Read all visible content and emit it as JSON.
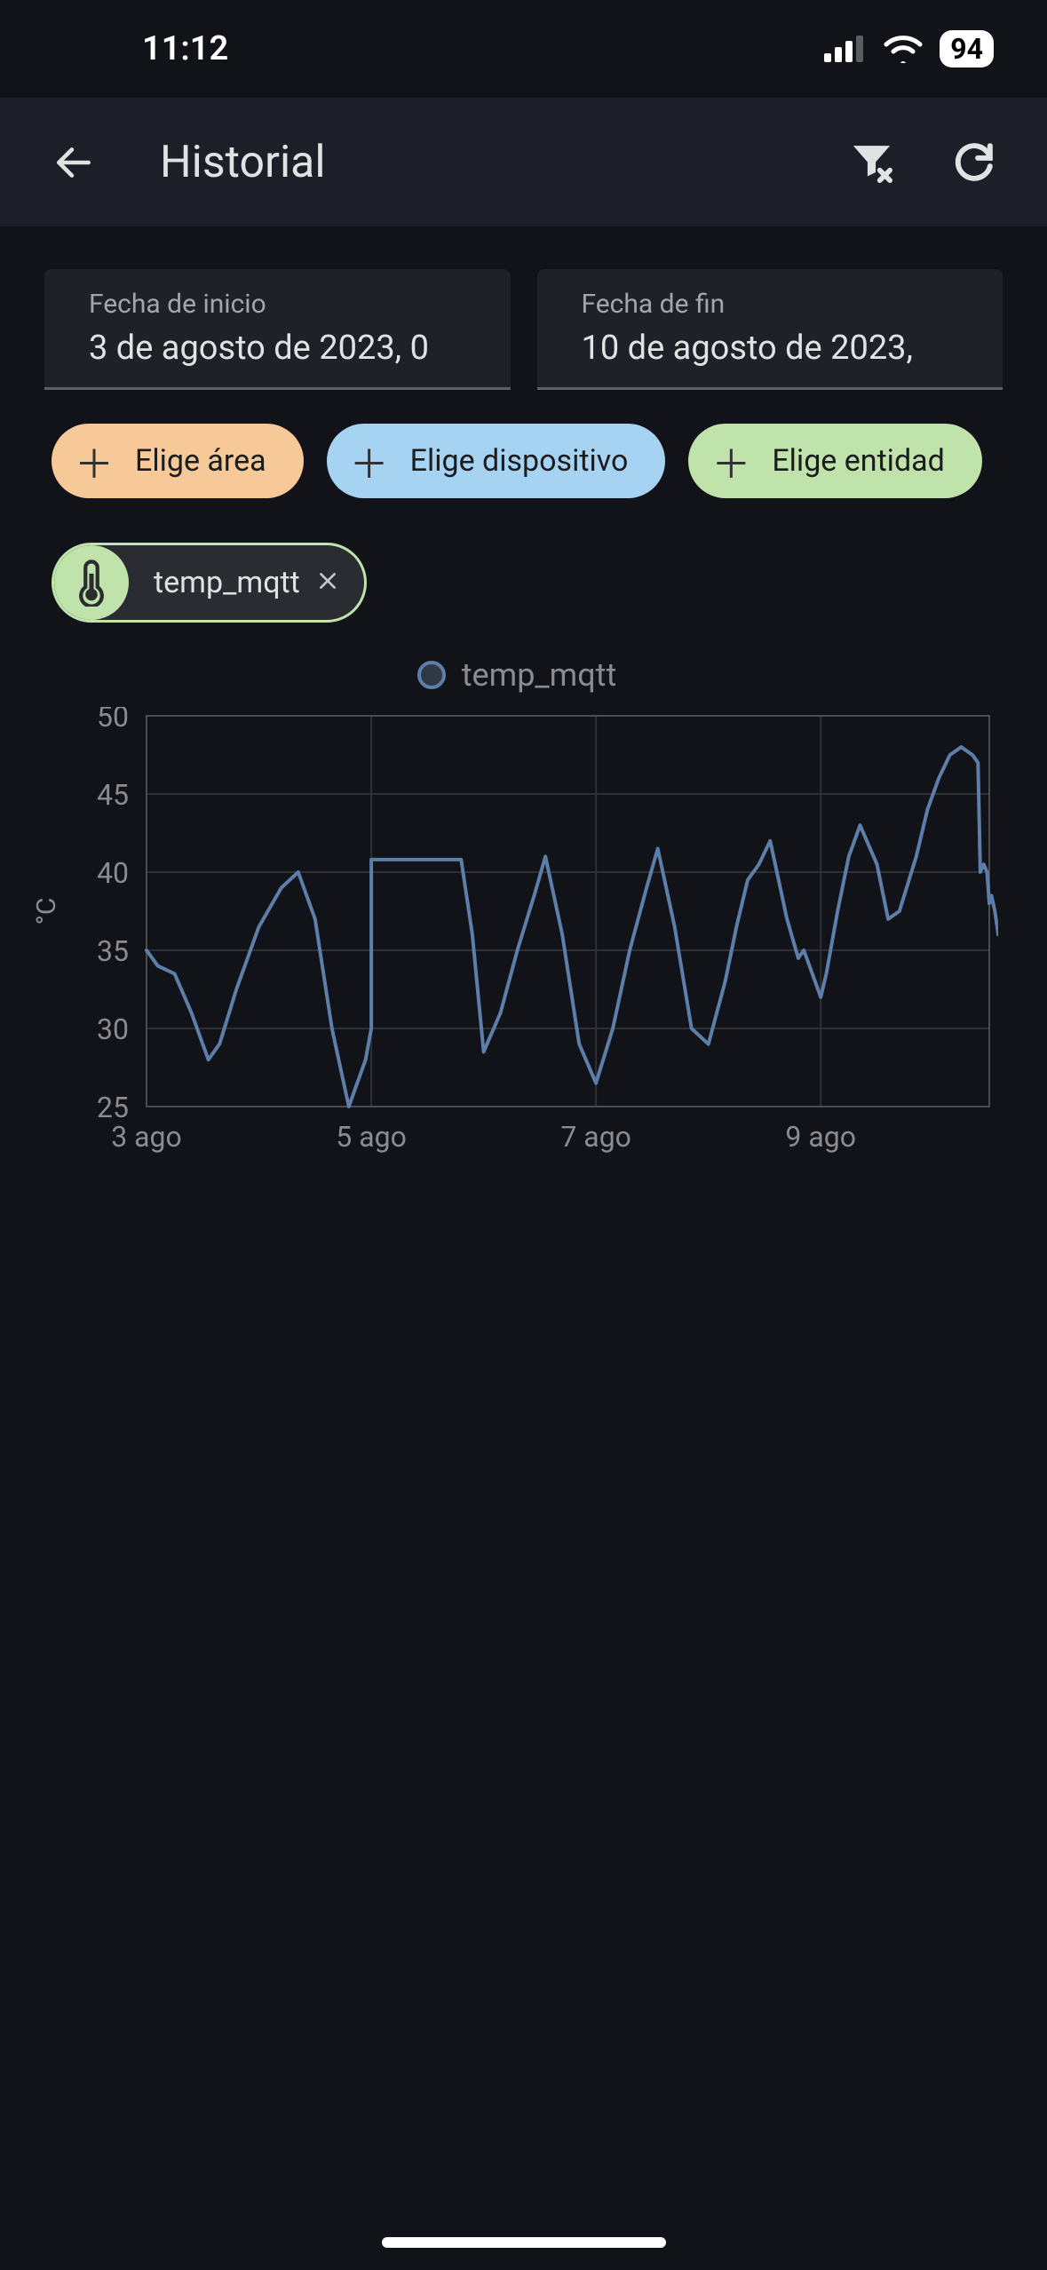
{
  "status": {
    "time": "11:12",
    "battery": "94",
    "signal_bars": 3,
    "wifi": true
  },
  "header": {
    "title": "Historial"
  },
  "date_pickers": {
    "start": {
      "label": "Fecha de inicio",
      "value": "3 de agosto de 2023, 0"
    },
    "end": {
      "label": "Fecha de fin",
      "value": "10 de agosto de 2023,"
    }
  },
  "chips": {
    "area": "Elige área",
    "device": "Elige dispositivo",
    "entity": "Elige entidad",
    "colors": {
      "area": "#f7c998",
      "device": "#a7d3f3",
      "entity": "#c0e2ab"
    }
  },
  "selected_entity": {
    "name": "temp_mqtt",
    "icon": "thermometer",
    "accent_color": "#c0e2ab"
  },
  "chart": {
    "type": "line",
    "legend_label": "temp_mqtt",
    "y_axis": {
      "unit": "°C",
      "min": 25,
      "max": 50,
      "tick_step": 5,
      "label_fontsize": 32,
      "label_color": "#8a8c92"
    },
    "x_axis": {
      "ticks": [
        "3 ago",
        "5 ago",
        "7 ago",
        "9 ago"
      ],
      "range_days": 7.5,
      "label_fontsize": 32,
      "label_color": "#8a8c92"
    },
    "plot": {
      "line_color": "#5d7ea8",
      "line_width": 4,
      "background_color": "#111318",
      "grid_color": "#2e3035",
      "border_color": "#4b4d52",
      "data": [
        [
          0.0,
          35.0
        ],
        [
          0.1,
          34.0
        ],
        [
          0.25,
          33.5
        ],
        [
          0.4,
          31.0
        ],
        [
          0.55,
          28.0
        ],
        [
          0.65,
          29.0
        ],
        [
          0.8,
          32.5
        ],
        [
          1.0,
          36.5
        ],
        [
          1.2,
          39.0
        ],
        [
          1.35,
          40.0
        ],
        [
          1.5,
          37.0
        ],
        [
          1.65,
          30.0
        ],
        [
          1.8,
          25.0
        ],
        [
          1.95,
          28.0
        ],
        [
          2.0,
          30.0
        ],
        [
          2.0,
          40.8
        ],
        [
          2.8,
          40.8
        ],
        [
          2.9,
          36.0
        ],
        [
          3.0,
          28.5
        ],
        [
          3.15,
          31.0
        ],
        [
          3.3,
          35.0
        ],
        [
          3.45,
          38.5
        ],
        [
          3.55,
          41.0
        ],
        [
          3.7,
          36.0
        ],
        [
          3.85,
          29.0
        ],
        [
          4.0,
          26.5
        ],
        [
          4.15,
          30.0
        ],
        [
          4.3,
          35.0
        ],
        [
          4.45,
          39.0
        ],
        [
          4.55,
          41.5
        ],
        [
          4.7,
          36.5
        ],
        [
          4.85,
          30.0
        ],
        [
          5.0,
          29.0
        ],
        [
          5.15,
          33.0
        ],
        [
          5.25,
          36.5
        ],
        [
          5.35,
          39.5
        ],
        [
          5.45,
          40.5
        ],
        [
          5.55,
          42.0
        ],
        [
          5.7,
          37.0
        ],
        [
          5.8,
          34.5
        ],
        [
          5.85,
          35.0
        ],
        [
          5.95,
          33.0
        ],
        [
          6.0,
          32.0
        ],
        [
          6.05,
          33.5
        ],
        [
          6.15,
          37.5
        ],
        [
          6.25,
          41.0
        ],
        [
          6.35,
          43.0
        ],
        [
          6.5,
          40.5
        ],
        [
          6.6,
          37.0
        ],
        [
          6.7,
          37.5
        ],
        [
          6.85,
          41.0
        ],
        [
          6.95,
          44.0
        ],
        [
          7.05,
          46.0
        ],
        [
          7.15,
          47.5
        ],
        [
          7.25,
          48.0
        ],
        [
          7.35,
          47.5
        ],
        [
          7.4,
          47.0
        ],
        [
          7.42,
          40.0
        ],
        [
          7.45,
          40.5
        ],
        [
          7.48,
          40.0
        ],
        [
          7.5,
          38.0
        ],
        [
          7.52,
          38.5
        ],
        [
          7.55,
          37.5
        ],
        [
          7.58,
          36.0
        ],
        [
          7.6,
          37.0
        ],
        [
          7.63,
          35.0
        ],
        [
          7.65,
          36.5
        ],
        [
          7.7,
          34.0
        ]
      ]
    }
  },
  "colors": {
    "page_bg": "#111318",
    "header_bg": "#1c1f27",
    "field_bg": "#1f2128",
    "text_primary": "#e1e2e4",
    "text_secondary": "#a4a5ab"
  }
}
